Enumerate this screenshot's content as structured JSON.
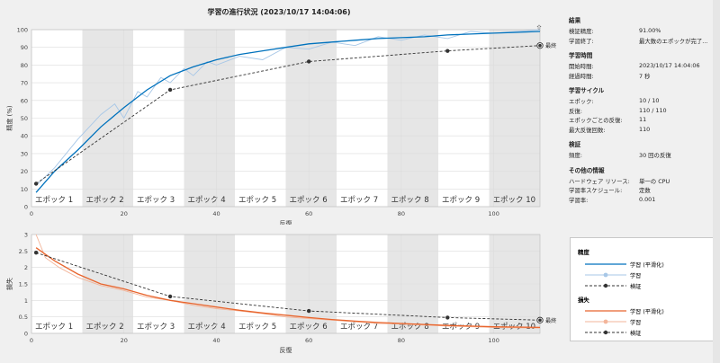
{
  "title": "学習の進行状況 (2023/10/17 14:04:06)",
  "colors": {
    "train_smooth": "#0072bd",
    "train_raw": "#a7c7e7",
    "validation": "#333333",
    "loss_smooth": "#e8652d",
    "loss_raw": "#f3b59a",
    "band": "#e6e6e6"
  },
  "top_plot": {
    "ylabel": "精度 (%)",
    "xlabel": "反復",
    "yticks": [
      "0",
      "10",
      "20",
      "30",
      "40",
      "50",
      "60",
      "70",
      "80",
      "90",
      "100"
    ],
    "xticks": [
      "0",
      "20",
      "40",
      "60",
      "80",
      "100"
    ],
    "final_label": "最終"
  },
  "bottom_plot": {
    "ylabel": "損失",
    "xlabel": "反復",
    "yticks": [
      "0",
      "0.5",
      "1",
      "1.5",
      "2",
      "2.5",
      "3"
    ],
    "xticks": [
      "0",
      "20",
      "40",
      "60",
      "80",
      "100"
    ],
    "final_label": "最終"
  },
  "epochs": [
    "エポック 1",
    "エポック 2",
    "エポック 3",
    "エポック 4",
    "エポック 5",
    "エポック 6",
    "エポック 7",
    "エポック 8",
    "エポック 9",
    "エポック 10"
  ],
  "chart_data": [
    {
      "type": "line",
      "title": "",
      "xlabel": "反復",
      "ylabel": "精度 (%)",
      "xlim": [
        0,
        110
      ],
      "ylim": [
        0,
        100
      ],
      "grid": true,
      "series": [
        {
          "name": "学習 (平滑化)",
          "x": [
            1,
            5,
            10,
            15,
            20,
            25,
            30,
            35,
            40,
            45,
            50,
            55,
            60,
            65,
            70,
            75,
            80,
            85,
            90,
            95,
            100,
            105,
            110
          ],
          "values": [
            8,
            20,
            32,
            45,
            56,
            66,
            74,
            79,
            83,
            86,
            88,
            90,
            92,
            93,
            94,
            95,
            95.5,
            96,
            97,
            97.5,
            98,
            98.5,
            99
          ]
        },
        {
          "name": "学習",
          "x": [
            1,
            5,
            10,
            15,
            18,
            20,
            23,
            25,
            28,
            30,
            33,
            35,
            38,
            40,
            45,
            50,
            55,
            60,
            65,
            70,
            75,
            80,
            85,
            90,
            95,
            100,
            105,
            110
          ],
          "values": [
            12,
            22,
            38,
            52,
            58,
            50,
            65,
            62,
            73,
            70,
            78,
            74,
            82,
            80,
            85,
            83,
            90,
            89,
            93,
            91,
            96,
            94,
            97,
            95,
            99,
            98,
            99,
            100
          ]
        },
        {
          "name": "検証",
          "x": [
            1,
            30,
            60,
            90,
            110
          ],
          "values": [
            13,
            66,
            82,
            88,
            91
          ]
        }
      ]
    },
    {
      "type": "line",
      "title": "",
      "xlabel": "反復",
      "ylabel": "損失",
      "xlim": [
        0,
        110
      ],
      "ylim": [
        0,
        3
      ],
      "grid": true,
      "series": [
        {
          "name": "学習 (平滑化)",
          "x": [
            1,
            5,
            10,
            15,
            20,
            25,
            30,
            35,
            40,
            45,
            50,
            55,
            60,
            65,
            70,
            75,
            80,
            85,
            90,
            95,
            100,
            105,
            110
          ],
          "values": [
            2.6,
            2.2,
            1.8,
            1.5,
            1.35,
            1.15,
            1.0,
            0.9,
            0.8,
            0.7,
            0.62,
            0.55,
            0.48,
            0.42,
            0.37,
            0.33,
            0.3,
            0.27,
            0.24,
            0.22,
            0.2,
            0.19,
            0.18
          ]
        },
        {
          "name": "学習",
          "x": [
            1,
            3,
            6,
            10,
            15,
            20,
            25,
            30,
            35,
            40,
            45,
            50,
            55,
            60,
            65,
            70,
            75,
            80,
            85,
            90,
            95,
            100,
            105,
            110
          ],
          "values": [
            3.0,
            2.3,
            2.0,
            1.7,
            1.45,
            1.3,
            1.1,
            1.0,
            0.85,
            0.75,
            0.68,
            0.6,
            0.5,
            0.45,
            0.4,
            0.35,
            0.3,
            0.28,
            0.25,
            0.22,
            0.2,
            0.18,
            0.17,
            0.16
          ]
        },
        {
          "name": "検証",
          "x": [
            1,
            30,
            60,
            90,
            110
          ],
          "values": [
            2.45,
            1.12,
            0.68,
            0.48,
            0.4
          ]
        }
      ]
    }
  ],
  "info": {
    "sections": [
      {
        "header": "結果",
        "rows": [
          [
            "検証精度:",
            "91.00%"
          ],
          [
            "学習終了:",
            "最大数のエポックが完了..."
          ]
        ]
      },
      {
        "header": "学習時間",
        "rows": [
          [
            "開始時間:",
            "2023/10/17 14:04:06"
          ],
          [
            "経過時間:",
            "7 秒"
          ]
        ]
      },
      {
        "header": "学習サイクル",
        "rows": [
          [
            "エポック:",
            "10 / 10"
          ],
          [
            "反復:",
            "110 / 110"
          ],
          [
            "エポックごとの反復:",
            "11"
          ],
          [
            "最大反復回数:",
            "110"
          ]
        ]
      },
      {
        "header": "検証",
        "rows": [
          [
            "頻度:",
            "30 回の反復"
          ]
        ]
      },
      {
        "header": "その他の情報",
        "rows": [
          [
            "ハードウェア リソース:",
            "単一の CPU"
          ],
          [
            "学習率スケジュール:",
            "定数"
          ],
          [
            "学習率:",
            "0.001"
          ]
        ]
      }
    ]
  },
  "legend": {
    "acc_header": "精度",
    "acc_items": [
      "学習 (平滑化)",
      "学習",
      "検証"
    ],
    "loss_header": "損失",
    "loss_items": [
      "学習 (平滑化)",
      "学習",
      "検証"
    ]
  },
  "export_icon": "export-icon"
}
